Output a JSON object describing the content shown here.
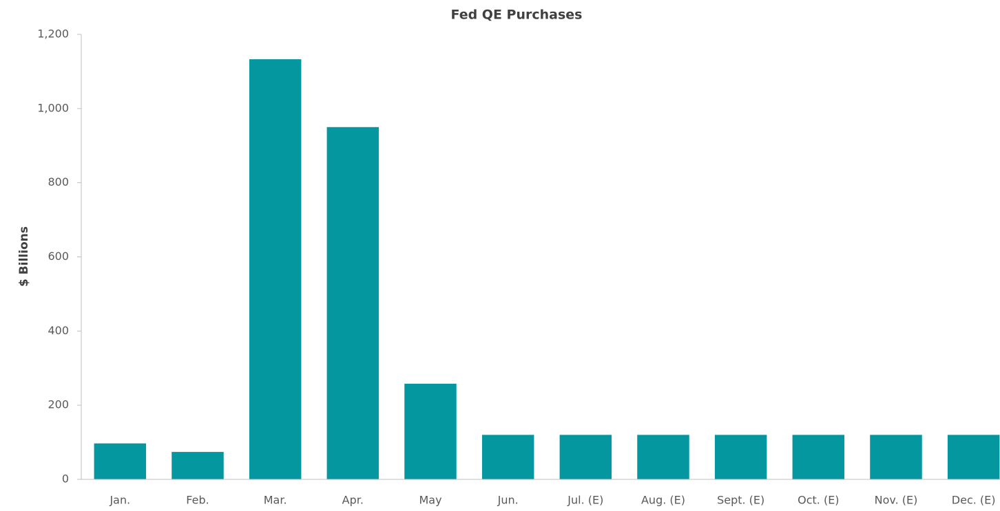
{
  "chart_data": {
    "type": "bar",
    "title": "Fed QE Purchases",
    "y_label": "$ Billions",
    "categories": [
      "Jan.",
      "Feb.",
      "Mar.",
      "Apr.",
      "May",
      "Jun.",
      "Jul. (E)",
      "Aug. (E)",
      "Sept. (E)",
      "Oct. (E)",
      "Nov. (E)",
      "Dec. (E)"
    ],
    "values": [
      97,
      74,
      1133,
      950,
      258,
      120,
      120,
      120,
      120,
      120,
      120,
      120
    ],
    "color": "#0597a0",
    "ylim": [
      0,
      1200
    ],
    "yticks": [
      0,
      200,
      400,
      600,
      800,
      {
        "value": 1000,
        "label": "1,000"
      },
      {
        "value": 1200,
        "label": "1,200"
      }
    ],
    "grid": false
  }
}
